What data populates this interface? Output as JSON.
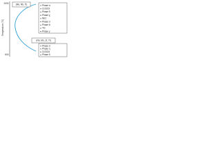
{
  "axis": {
    "label": "Temperature (°C)",
    "top": "1000",
    "bottom": "600"
  },
  "upper": {
    "title": "(Mo, Nb, Ti)",
    "items": [
      "Phase α",
      "Cr23C6",
      "Phase δ",
      "Phase χ",
      "NbC",
      "Phase σ",
      "Phase θ",
      "TiC",
      "Phase γ"
    ]
  },
  "lower": {
    "title": "(Nb, Mo, Zr, Ti)",
    "items": [
      "Phase α",
      "Phase η",
      "Cr23C6",
      "Phase δ"
    ]
  }
}
